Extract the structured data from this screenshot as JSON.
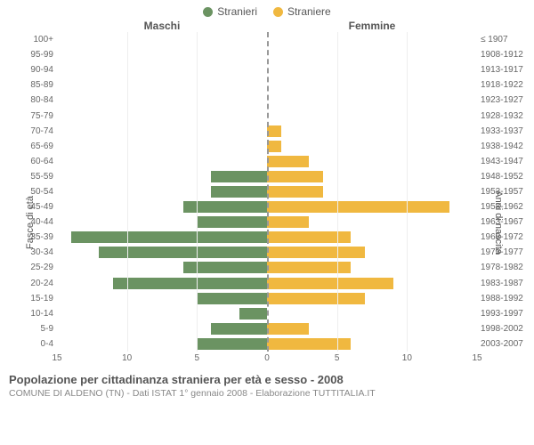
{
  "legend": {
    "male": {
      "label": "Stranieri",
      "color": "#6b9362"
    },
    "female": {
      "label": "Straniere",
      "color": "#f0b840"
    }
  },
  "headers": {
    "male": "Maschi",
    "female": "Femmine"
  },
  "ylabel_left": "Fasce di età",
  "ylabel_right": "Anni di nascita",
  "chart": {
    "type": "population-pyramid",
    "xmax": 15,
    "xticks_left": [
      15,
      10,
      5,
      0
    ],
    "xticks_right": [
      0,
      5,
      10,
      15
    ],
    "bar_colors": {
      "male": "#6b9362",
      "female": "#f0b840"
    },
    "background_color": "#ffffff",
    "grid_color": "#eeeeee",
    "divider_color": "#999999",
    "rows": [
      {
        "age": "100+",
        "birth": "≤ 1907",
        "m": 0,
        "f": 0
      },
      {
        "age": "95-99",
        "birth": "1908-1912",
        "m": 0,
        "f": 0
      },
      {
        "age": "90-94",
        "birth": "1913-1917",
        "m": 0,
        "f": 0
      },
      {
        "age": "85-89",
        "birth": "1918-1922",
        "m": 0,
        "f": 0
      },
      {
        "age": "80-84",
        "birth": "1923-1927",
        "m": 0,
        "f": 0
      },
      {
        "age": "75-79",
        "birth": "1928-1932",
        "m": 0,
        "f": 0
      },
      {
        "age": "70-74",
        "birth": "1933-1937",
        "m": 0,
        "f": 1
      },
      {
        "age": "65-69",
        "birth": "1938-1942",
        "m": 0,
        "f": 1
      },
      {
        "age": "60-64",
        "birth": "1943-1947",
        "m": 0,
        "f": 3
      },
      {
        "age": "55-59",
        "birth": "1948-1952",
        "m": 4,
        "f": 4
      },
      {
        "age": "50-54",
        "birth": "1953-1957",
        "m": 4,
        "f": 4
      },
      {
        "age": "45-49",
        "birth": "1958-1962",
        "m": 6,
        "f": 13
      },
      {
        "age": "40-44",
        "birth": "1963-1967",
        "m": 5,
        "f": 3
      },
      {
        "age": "35-39",
        "birth": "1968-1972",
        "m": 14,
        "f": 6
      },
      {
        "age": "30-34",
        "birth": "1973-1977",
        "m": 12,
        "f": 7
      },
      {
        "age": "25-29",
        "birth": "1978-1982",
        "m": 6,
        "f": 6
      },
      {
        "age": "20-24",
        "birth": "1983-1987",
        "m": 11,
        "f": 9
      },
      {
        "age": "15-19",
        "birth": "1988-1992",
        "m": 5,
        "f": 7
      },
      {
        "age": "10-14",
        "birth": "1993-1997",
        "m": 2,
        "f": 0
      },
      {
        "age": "5-9",
        "birth": "1998-2002",
        "m": 4,
        "f": 3
      },
      {
        "age": "0-4",
        "birth": "2003-2007",
        "m": 5,
        "f": 6
      }
    ]
  },
  "title": "Popolazione per cittadinanza straniera per età e sesso - 2008",
  "subtitle": "COMUNE DI ALDENO (TN) - Dati ISTAT 1° gennaio 2008 - Elaborazione TUTTITALIA.IT"
}
